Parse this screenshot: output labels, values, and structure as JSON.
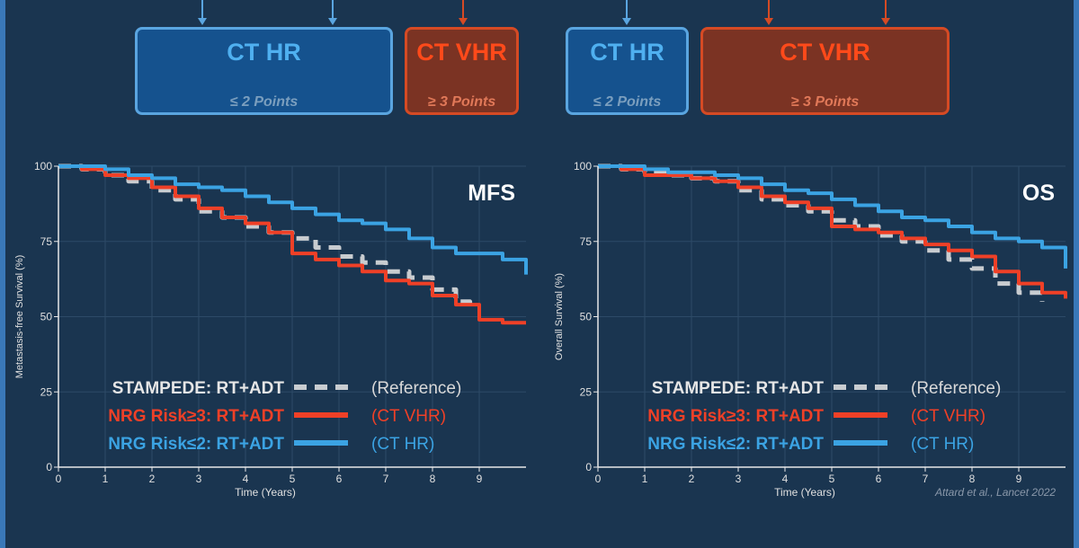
{
  "boxes": [
    {
      "title": "CT HR",
      "subtitle": "≤ 2 Points",
      "kind": "hr"
    },
    {
      "title": "CT VHR",
      "subtitle": "≥ 3 Points",
      "kind": "vhr"
    },
    {
      "title": "CT HR",
      "subtitle": "≤ 2 Points",
      "kind": "hr"
    },
    {
      "title": "CT VHR",
      "subtitle": "≥ 3 Points",
      "kind": "vhr"
    }
  ],
  "citation": "Attard et al., Lancet 2022",
  "colors": {
    "stampede": "#c8ccd0",
    "vhr": "#ef4027",
    "hr": "#3ba3e3",
    "axis": "#e8e8e8",
    "grid": "#2d4a67"
  },
  "legend": [
    {
      "label": "STAMPEDE:",
      "arm": "RT+ADT",
      "note": "(Reference)",
      "style": "dashed",
      "series": "stampede"
    },
    {
      "label": "NRG Risk≥3:",
      "arm": "RT+ADT",
      "note": "(CT VHR)",
      "style": "solid",
      "series": "vhr"
    },
    {
      "label": "NRG Risk≤2:",
      "arm": "RT+ADT",
      "note": "(CT HR)",
      "style": "solid",
      "series": "hr"
    }
  ],
  "chart_data": [
    {
      "type": "line",
      "title": "MFS",
      "xlabel": "Time (Years)",
      "ylabel": "Metastasis-free Survival (%)",
      "xlim": [
        0,
        10
      ],
      "ylim": [
        0,
        100
      ],
      "xticks": [
        0,
        1,
        2,
        3,
        4,
        5,
        6,
        7,
        8,
        9
      ],
      "yticks": [
        0,
        25,
        50,
        75,
        100
      ],
      "grid": true,
      "series": [
        {
          "key": "stampede",
          "x": [
            0,
            0.5,
            1,
            1.5,
            2,
            2.5,
            3,
            3.5,
            4,
            4.5,
            5,
            5.5,
            6,
            6.5,
            7,
            7.5,
            8,
            8.5,
            8.8
          ],
          "y": [
            100,
            99,
            97,
            95,
            92,
            89,
            85,
            83,
            80,
            78,
            76,
            73,
            70,
            68,
            65,
            63,
            59,
            55,
            52
          ]
        },
        {
          "key": "vhr",
          "x": [
            0,
            0.5,
            1,
            1.5,
            2,
            2.5,
            3,
            3.5,
            4,
            4.5,
            5,
            5.5,
            6,
            6.5,
            7,
            7.5,
            8,
            8.5,
            9,
            9.5,
            10
          ],
          "y": [
            100,
            99,
            97,
            96,
            93,
            90,
            86,
            83,
            81,
            78,
            71,
            69,
            67,
            65,
            62,
            61,
            57,
            54,
            49,
            48,
            48
          ]
        },
        {
          "key": "hr",
          "x": [
            0,
            1,
            1.5,
            2,
            2.5,
            3,
            3.5,
            4,
            4.5,
            5,
            5.5,
            6,
            6.5,
            7,
            7.5,
            8,
            8.5,
            9,
            9.5,
            10
          ],
          "y": [
            100,
            99,
            97,
            96,
            94,
            93,
            92,
            90,
            88,
            86,
            84,
            82,
            81,
            79,
            76,
            73,
            71,
            71,
            69,
            64
          ]
        }
      ]
    },
    {
      "type": "line",
      "title": "OS",
      "xlabel": "Time (Years)",
      "ylabel": "Overall Survival (%)",
      "xlim": [
        0,
        10
      ],
      "ylim": [
        0,
        100
      ],
      "xticks": [
        0,
        1,
        2,
        3,
        4,
        5,
        6,
        7,
        8,
        9
      ],
      "yticks": [
        0,
        25,
        50,
        75,
        100
      ],
      "grid": true,
      "series": [
        {
          "key": "stampede",
          "x": [
            0,
            0.5,
            1,
            1.5,
            2,
            2.5,
            3,
            3.5,
            4,
            4.5,
            5,
            5.5,
            6,
            6.5,
            7,
            7.5,
            8,
            8.5,
            9,
            9.5
          ],
          "y": [
            100,
            99,
            98,
            97,
            96,
            95,
            92,
            89,
            87,
            85,
            82,
            80,
            77,
            75,
            72,
            69,
            66,
            61,
            58,
            55
          ]
        },
        {
          "key": "vhr",
          "x": [
            0,
            0.5,
            1,
            1.5,
            2,
            2.5,
            3,
            3.5,
            4,
            4.5,
            5,
            5.5,
            6,
            6.5,
            7,
            7.5,
            8,
            8.5,
            9,
            9.5,
            10
          ],
          "y": [
            100,
            99,
            97,
            97,
            96,
            95,
            93,
            90,
            88,
            86,
            80,
            79,
            78,
            76,
            74,
            72,
            70,
            65,
            61,
            58,
            56
          ]
        },
        {
          "key": "hr",
          "x": [
            0,
            1,
            1.5,
            2,
            2.5,
            3,
            3.5,
            4,
            4.5,
            5,
            5.5,
            6,
            6.5,
            7,
            7.5,
            8,
            8.5,
            9,
            9.5,
            10
          ],
          "y": [
            100,
            99,
            98,
            98,
            97,
            96,
            94,
            92,
            91,
            89,
            87,
            85,
            83,
            82,
            80,
            78,
            76,
            75,
            73,
            66
          ]
        }
      ]
    }
  ]
}
